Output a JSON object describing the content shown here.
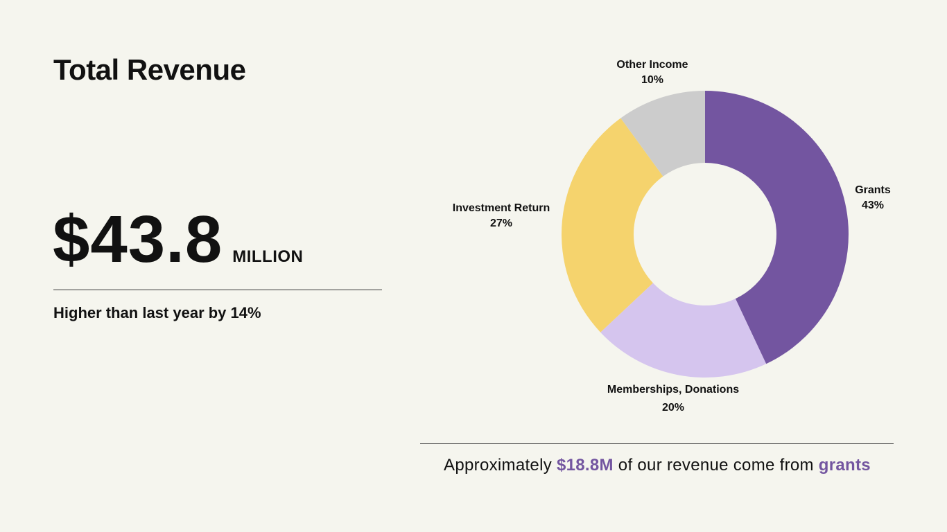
{
  "header": {
    "title": "Total Revenue"
  },
  "headline": {
    "amount": "$43.8",
    "unit": "MILLION",
    "comparison": "Higher than last year by 14%"
  },
  "footnote": {
    "prefix": "Approximately ",
    "amount": "$18.8M",
    "middle": " of our revenue come from ",
    "highlight": "grants"
  },
  "colors": {
    "accent": "#7355a0",
    "background": "#f5f5ee"
  },
  "chart_data": {
    "type": "pie",
    "variant": "donut",
    "slices": [
      {
        "label": "Grants",
        "value": 43,
        "value_label": "43%",
        "color": "#7355a0"
      },
      {
        "label": "Memberships, Donations",
        "value": 20,
        "value_label": "20%",
        "color": "#d5c5ee"
      },
      {
        "label": "Investment Return",
        "value": 27,
        "value_label": "27%",
        "color": "#f5d36d"
      },
      {
        "label": "Other Income",
        "value": 10,
        "value_label": "10%",
        "color": "#cccccc"
      }
    ],
    "start": "12 o'clock",
    "direction": "clockwise",
    "legend": "none",
    "title": ""
  }
}
